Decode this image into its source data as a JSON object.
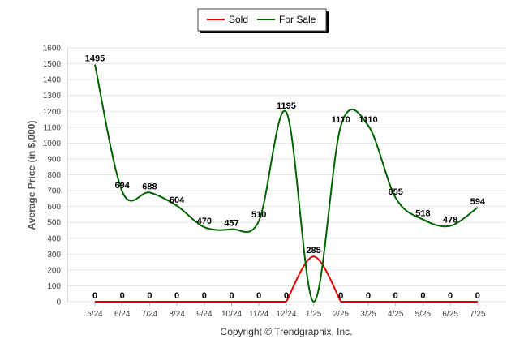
{
  "chart_data": {
    "type": "line",
    "categories": [
      "5/24",
      "6/24",
      "7/24",
      "8/24",
      "9/24",
      "10/24",
      "11/24",
      "12/24",
      "1/25",
      "2/25",
      "3/25",
      "4/25",
      "5/25",
      "6/25",
      "7/25"
    ],
    "series": [
      {
        "name": "Sold",
        "color": "#e00000",
        "values": [
          0,
          0,
          0,
          0,
          0,
          0,
          0,
          0,
          285,
          0,
          0,
          0,
          0,
          0,
          0
        ]
      },
      {
        "name": "For Sale",
        "color": "#006400",
        "values": [
          1495,
          694,
          688,
          604,
          470,
          457,
          510,
          1195,
          0,
          1110,
          1110,
          655,
          518,
          478,
          594
        ]
      }
    ],
    "ylabel": "Average Price (in $,000)",
    "xlabel": "",
    "ylim": [
      0,
      1600
    ],
    "yticks": [
      0,
      100,
      200,
      300,
      400,
      500,
      600,
      700,
      800,
      900,
      1000,
      1100,
      1200,
      1300,
      1400,
      1500,
      1600
    ],
    "grid": true,
    "legend_position": "top-center",
    "smooth": true
  },
  "footer": {
    "copyright": "Copyright © Trendgraphix, Inc."
  }
}
